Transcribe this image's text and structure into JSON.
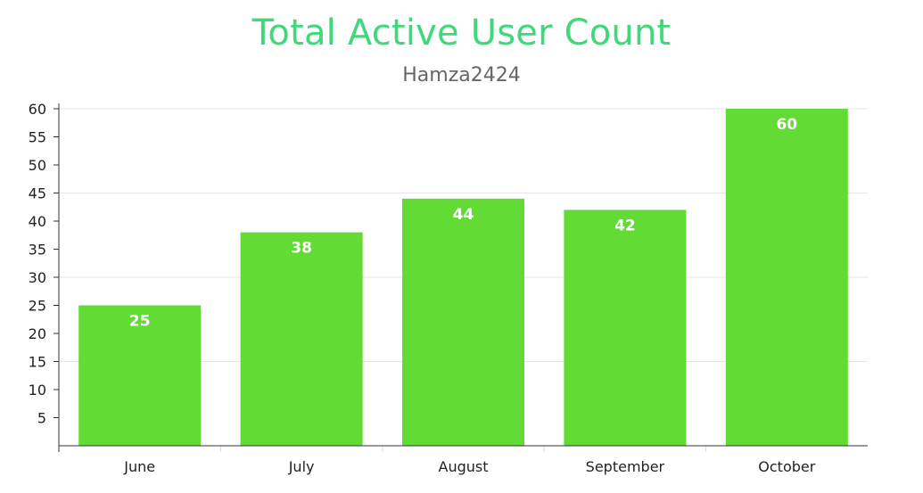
{
  "chart_data": {
    "type": "bar",
    "title": "Total Active User Count",
    "subtitle": "Hamza2424",
    "categories": [
      "June",
      "July",
      "August",
      "September",
      "October"
    ],
    "values": [
      25,
      38,
      44,
      42,
      60
    ],
    "ylim": [
      0,
      60
    ],
    "yticks": [
      5,
      10,
      15,
      20,
      25,
      30,
      35,
      40,
      45,
      50,
      55,
      60
    ],
    "grid": true,
    "data_labels": true,
    "legend": "none",
    "colors": {
      "bar": "#62db35",
      "title": "#3fd87a",
      "subtitle": "#666666",
      "grid": "#e6e6e6",
      "axis": "#333333"
    }
  }
}
